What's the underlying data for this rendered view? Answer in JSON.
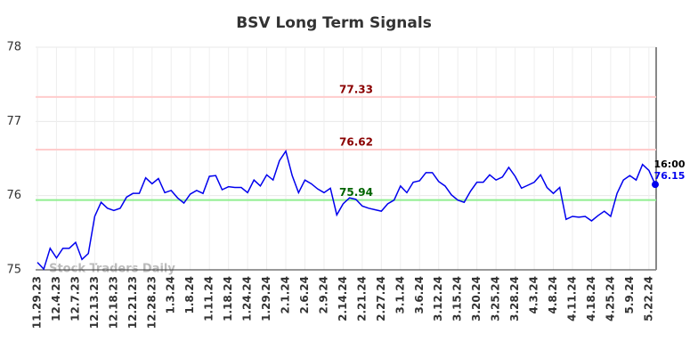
{
  "chart_data": {
    "type": "line",
    "title": "BSV Long Term Signals",
    "watermark": "Stock Traders Daily",
    "color": "#0000ee",
    "categories": [
      "11.29.23",
      null,
      null,
      "12.4.23",
      null,
      null,
      "12.7.23",
      null,
      null,
      "12.13.23",
      null,
      null,
      "12.18.23",
      null,
      null,
      "12.21.23",
      null,
      null,
      "12.28.23",
      null,
      null,
      "1.3.24",
      null,
      null,
      "1.8.24",
      null,
      null,
      "1.11.24",
      null,
      null,
      "1.18.24",
      null,
      null,
      "1.24.24",
      null,
      null,
      "1.29.24",
      null,
      null,
      "2.1.24",
      null,
      null,
      "2.6.24",
      null,
      null,
      "2.9.24",
      null,
      null,
      "2.14.24",
      null,
      null,
      "2.21.24",
      null,
      null,
      "2.27.24",
      null,
      null,
      "3.1.24",
      null,
      null,
      "3.6.24",
      null,
      null,
      "3.12.24",
      null,
      null,
      "3.15.24",
      null,
      null,
      "3.20.24",
      null,
      null,
      "3.25.24",
      null,
      null,
      "3.28.24",
      null,
      null,
      "4.3.24",
      null,
      null,
      "4.8.24",
      null,
      null,
      "4.11.24",
      null,
      null,
      "4.18.24",
      null,
      null,
      "4.25.24",
      null,
      null,
      "5.9.24",
      null,
      null,
      "5.22.24",
      null
    ],
    "values": [
      75.1,
      75.01,
      75.29,
      75.16,
      75.29,
      75.29,
      75.37,
      75.14,
      75.22,
      75.72,
      75.91,
      75.83,
      75.8,
      75.83,
      75.98,
      76.03,
      76.03,
      76.24,
      76.16,
      76.23,
      76.04,
      76.07,
      75.97,
      75.9,
      76.02,
      76.07,
      76.03,
      76.26,
      76.27,
      76.08,
      76.12,
      76.11,
      76.11,
      76.04,
      76.21,
      76.13,
      76.28,
      76.21,
      76.47,
      76.6,
      76.27,
      76.04,
      76.21,
      76.16,
      76.09,
      76.04,
      76.1,
      75.74,
      75.89,
      75.97,
      75.95,
      75.86,
      75.83,
      75.81,
      75.79,
      75.89,
      75.94,
      76.13,
      76.04,
      76.18,
      76.2,
      76.31,
      76.31,
      76.19,
      76.13,
      76.01,
      75.94,
      75.91,
      76.06,
      76.18,
      76.18,
      76.28,
      76.21,
      76.25,
      76.38,
      76.26,
      76.1,
      76.14,
      76.18,
      76.28,
      76.11,
      76.03,
      76.11,
      75.68,
      75.72,
      75.71,
      75.72,
      75.66,
      75.73,
      75.79,
      75.72,
      76.03,
      76.21,
      76.27,
      76.21,
      76.42,
      76.34,
      76.15
    ],
    "last_time": "16:00",
    "ylim": [
      75,
      78
    ],
    "yticks": [
      75,
      76,
      77,
      78
    ],
    "grid": true,
    "levels": [
      {
        "value": 77.33,
        "color": "#8b0000",
        "line_color": "#ffcccc"
      },
      {
        "value": 76.62,
        "color": "#8b0000",
        "line_color": "#ffcccc"
      },
      {
        "value": 75.94,
        "color": "#006400",
        "line_color": "#90ee90"
      }
    ]
  }
}
